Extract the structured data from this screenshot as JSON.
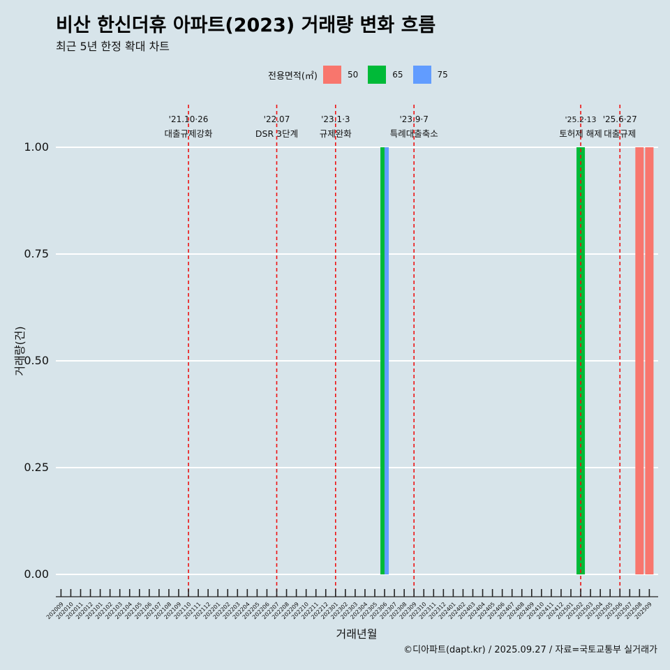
{
  "chart_data": {
    "type": "bar",
    "title": "비산 한신더휴 아파트(2023) 거래량 변화 흐름",
    "subtitle": "최근 5년 한정 확대 차트",
    "xlabel": "거래년월",
    "ylabel": "거래량(건)",
    "ylim": [
      0,
      1
    ],
    "yticks": [
      "0.00",
      "0.25",
      "0.50",
      "0.75",
      "1.00"
    ],
    "legend_title": "전용면적(㎡)",
    "legend_position": "top",
    "categories": [
      "202009",
      "202010",
      "202011",
      "202012",
      "202101",
      "202102",
      "202103",
      "202104",
      "202105",
      "202106",
      "202107",
      "202108",
      "202109",
      "202110",
      "202111",
      "202112",
      "202201",
      "202202",
      "202203",
      "202204",
      "202205",
      "202206",
      "202207",
      "202208",
      "202209",
      "202210",
      "202211",
      "202212",
      "202301",
      "202302",
      "202303",
      "202304",
      "202305",
      "202306",
      "202307",
      "202308",
      "202309",
      "202310",
      "202311",
      "202312",
      "202401",
      "202402",
      "202403",
      "202404",
      "202405",
      "202406",
      "202407",
      "202408",
      "202409",
      "202410",
      "202411",
      "202412",
      "202501",
      "202502",
      "202503",
      "202504",
      "202505",
      "202506",
      "202507",
      "202508",
      "202509"
    ],
    "series": [
      {
        "name": "50",
        "color": "#f8766d",
        "points": [
          {
            "x": "202508",
            "value": 1
          },
          {
            "x": "202509",
            "value": 1
          }
        ]
      },
      {
        "name": "65",
        "color": "#00ba38",
        "points": [
          {
            "x": "202306",
            "value": 1
          },
          {
            "x": "202502",
            "value": 1
          }
        ]
      },
      {
        "name": "75",
        "color": "#619cff",
        "points": [
          {
            "x": "202306",
            "value": 1
          }
        ]
      }
    ],
    "annotations": [
      {
        "x": "202110",
        "date": "'21.10·26",
        "label": "대출규제강화"
      },
      {
        "x": "202207",
        "date": "'22.07",
        "label": "DSR 3단계"
      },
      {
        "x": "202301",
        "date": "'23.1·3",
        "label": "규제완화"
      },
      {
        "x": "202309",
        "date": "'23.9·7",
        "label": "특례대출축소"
      },
      {
        "x": "202502",
        "date": "'25.2·13",
        "label": "토허제 해제"
      },
      {
        "x": "202506",
        "date": "'25.6·27",
        "label": "대출규제"
      }
    ],
    "caption": "©디아파트(dapt.kr) / 2025.09.27 / 자료=국토교통부 실거래가"
  }
}
